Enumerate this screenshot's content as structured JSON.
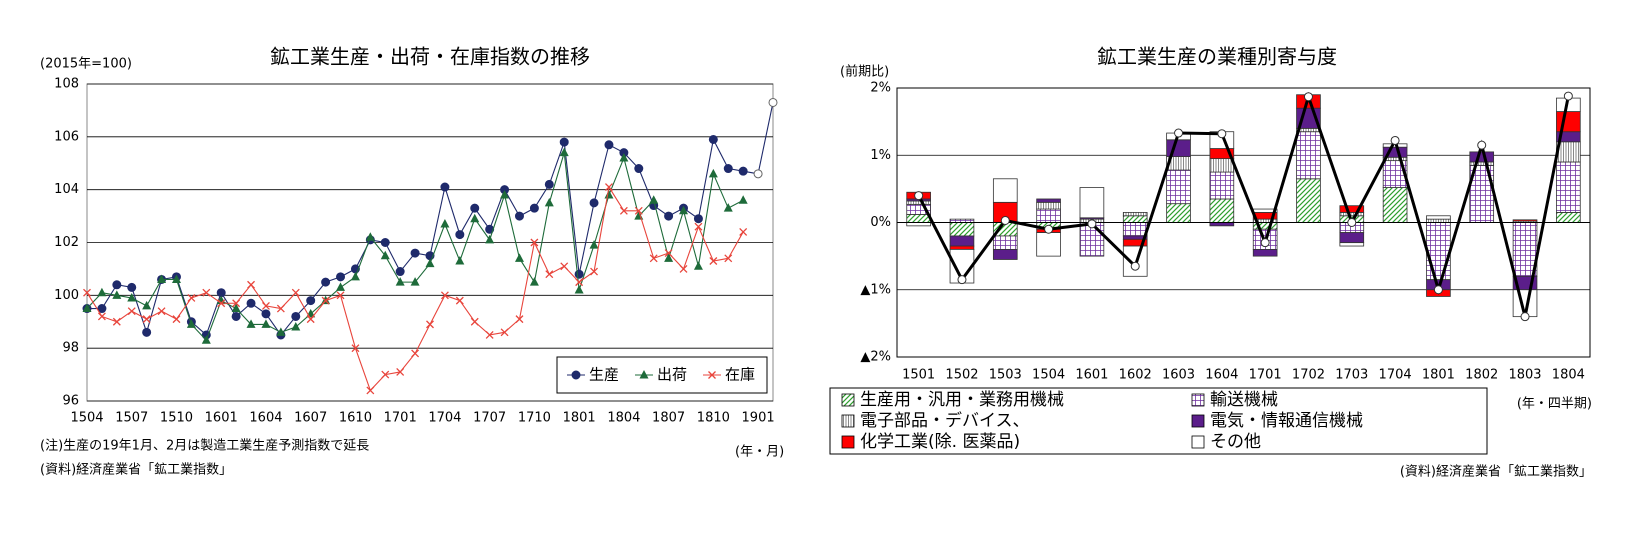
{
  "chart_data": [
    {
      "type": "line",
      "title": "鉱工業生産・出荷・在庫指数の推移",
      "y_unit_label": "(2015年=100)",
      "x_unit_label": "(年・月)",
      "notes": [
        "(注)生産の19年1月、2月は製造工業生産予測指数で延長",
        "(資料)経済産業省「鉱工業指数」"
      ],
      "categories": [
        "1504",
        null,
        null,
        "1507",
        null,
        null,
        "1510",
        null,
        null,
        "1601",
        null,
        null,
        "1604",
        null,
        null,
        "1607",
        null,
        null,
        "1610",
        null,
        null,
        "1701",
        null,
        null,
        "1704",
        null,
        null,
        "1707",
        null,
        null,
        "1710",
        null,
        null,
        "1801",
        null,
        null,
        "1804",
        null,
        null,
        "1807",
        null,
        null,
        "1810",
        null,
        null,
        "1901",
        null
      ],
      "ylim": [
        96,
        108
      ],
      "yticks": [
        96,
        98,
        100,
        102,
        104,
        106,
        108
      ],
      "grid": true,
      "legend": "lower right",
      "forecast_from_index": 45,
      "series": [
        {
          "name": "生産",
          "color": "#1f2a6b",
          "marker": "circle",
          "values": [
            99.5,
            99.5,
            100.4,
            100.3,
            98.6,
            100.6,
            100.7,
            99.0,
            98.5,
            100.1,
            99.2,
            99.7,
            99.3,
            98.5,
            99.2,
            99.8,
            100.5,
            100.7,
            101.0,
            102.1,
            102.0,
            100.9,
            101.6,
            101.5,
            104.1,
            102.3,
            103.3,
            102.5,
            104.0,
            103.0,
            103.3,
            104.2,
            105.8,
            100.8,
            103.5,
            105.7,
            105.4,
            104.8,
            103.4,
            103.0,
            103.3,
            102.9,
            105.9,
            104.8,
            104.7,
            104.6,
            107.3
          ]
        },
        {
          "name": "出荷",
          "color": "#1e6b3a",
          "marker": "triangle",
          "values": [
            99.5,
            100.1,
            100.0,
            99.9,
            99.6,
            100.6,
            100.6,
            98.9,
            98.3,
            99.8,
            99.5,
            98.9,
            98.9,
            98.6,
            98.8,
            99.3,
            99.8,
            100.3,
            100.7,
            102.2,
            101.5,
            100.5,
            100.5,
            101.2,
            102.7,
            101.3,
            102.9,
            102.1,
            103.8,
            101.4,
            100.5,
            103.5,
            105.4,
            100.2,
            101.9,
            103.8,
            105.2,
            103.0,
            103.6,
            101.4,
            103.2,
            101.1,
            104.6,
            103.3,
            103.6,
            null,
            null
          ]
        },
        {
          "name": "在庫",
          "color": "#e8453c",
          "marker": "x",
          "values": [
            100.1,
            99.2,
            99.0,
            99.4,
            99.1,
            99.4,
            99.1,
            99.9,
            100.1,
            99.7,
            99.7,
            100.4,
            99.6,
            99.5,
            100.1,
            99.1,
            99.8,
            100.0,
            98.0,
            96.4,
            97.0,
            97.1,
            97.8,
            98.9,
            100.0,
            99.8,
            99.0,
            98.5,
            98.6,
            99.1,
            102.0,
            100.8,
            101.1,
            100.5,
            100.9,
            104.1,
            103.2,
            103.2,
            101.4,
            101.6,
            101.0,
            102.6,
            101.3,
            101.4,
            102.4,
            null,
            null
          ]
        }
      ]
    },
    {
      "type": "stacked_bar",
      "title": "鉱工業生産の業種別寄与度",
      "y_unit_label": "(前期比)",
      "x_unit_label": "(年・四半期)",
      "notes": [
        "(資料)経済産業省「鉱工業指数」"
      ],
      "categories": [
        "1501",
        "1502",
        "1503",
        "1504",
        "1601",
        "1602",
        "1603",
        "1604",
        "1701",
        "1702",
        "1703",
        "1704",
        "1801",
        "1802",
        "1803",
        "1804"
      ],
      "ylim": [
        -2,
        2
      ],
      "yticks": [
        {
          "value": -2,
          "label": "▲2%"
        },
        {
          "value": -1,
          "label": "▲1%"
        },
        {
          "value": 0,
          "label": "0%"
        },
        {
          "value": 1,
          "label": "1%"
        },
        {
          "value": 2,
          "label": "2%"
        }
      ],
      "grid": true,
      "legend": "below",
      "series": [
        {
          "name": "生産用・汎用・業務用機械",
          "color": "#2e9e2e",
          "pattern": "diagonal",
          "values": [
            0.12,
            -0.2,
            -0.2,
            -0.1,
            0,
            0.1,
            0.28,
            0.35,
            -0.1,
            0.65,
            0.1,
            0.52,
            0,
            0,
            0,
            0.15
          ]
        },
        {
          "name": "輸送機械",
          "color": "#7030a0",
          "pattern": "grid",
          "values": [
            0.15,
            0.05,
            -0.2,
            0.2,
            -0.5,
            -0.2,
            0.5,
            0.4,
            -0.3,
            0.7,
            -0.15,
            0.4,
            -0.85,
            0.85,
            -0.8,
            0.75
          ]
        },
        {
          "name": "電子部品・デバイス、",
          "color": "#555555",
          "pattern": "vertical",
          "values": [
            0.05,
            0,
            0,
            0.1,
            0.05,
            0.05,
            0.2,
            0.2,
            0.05,
            0.05,
            0.05,
            0.05,
            0.05,
            0.05,
            0.02,
            0.3
          ]
        },
        {
          "name": "電気・情報通信機械",
          "color": "#5b1e8a",
          "pattern": "solid",
          "values": [
            0.03,
            -0.15,
            -0.15,
            0.05,
            0.02,
            -0.05,
            0.25,
            -0.05,
            -0.1,
            0.3,
            -0.15,
            0.15,
            -0.15,
            0.15,
            -0.2,
            0.15
          ]
        },
        {
          "name": "化学工業(除. 医薬品)",
          "color": "#ff0000",
          "pattern": "solid",
          "values": [
            0.1,
            -0.05,
            0.3,
            -0.05,
            0,
            -0.1,
            0,
            0.15,
            0.1,
            0.2,
            0.1,
            0,
            -0.1,
            0,
            0.02,
            0.3
          ]
        },
        {
          "name": "その他",
          "color": "#ffffff",
          "pattern": "solid",
          "values": [
            -0.05,
            -0.5,
            0.35,
            -0.35,
            0.45,
            -0.45,
            0.1,
            0.25,
            0.05,
            0,
            -0.05,
            0.05,
            0.05,
            0,
            -0.4,
            0.2
          ]
        },
        {
          "type": "line",
          "color": "#000000",
          "values": [
            0.4,
            -0.85,
            0.03,
            -0.1,
            -0.02,
            -0.65,
            1.33,
            1.32,
            -0.3,
            1.87,
            0.0,
            1.22,
            -1.0,
            1.15,
            -1.4,
            1.88
          ]
        }
      ]
    }
  ]
}
